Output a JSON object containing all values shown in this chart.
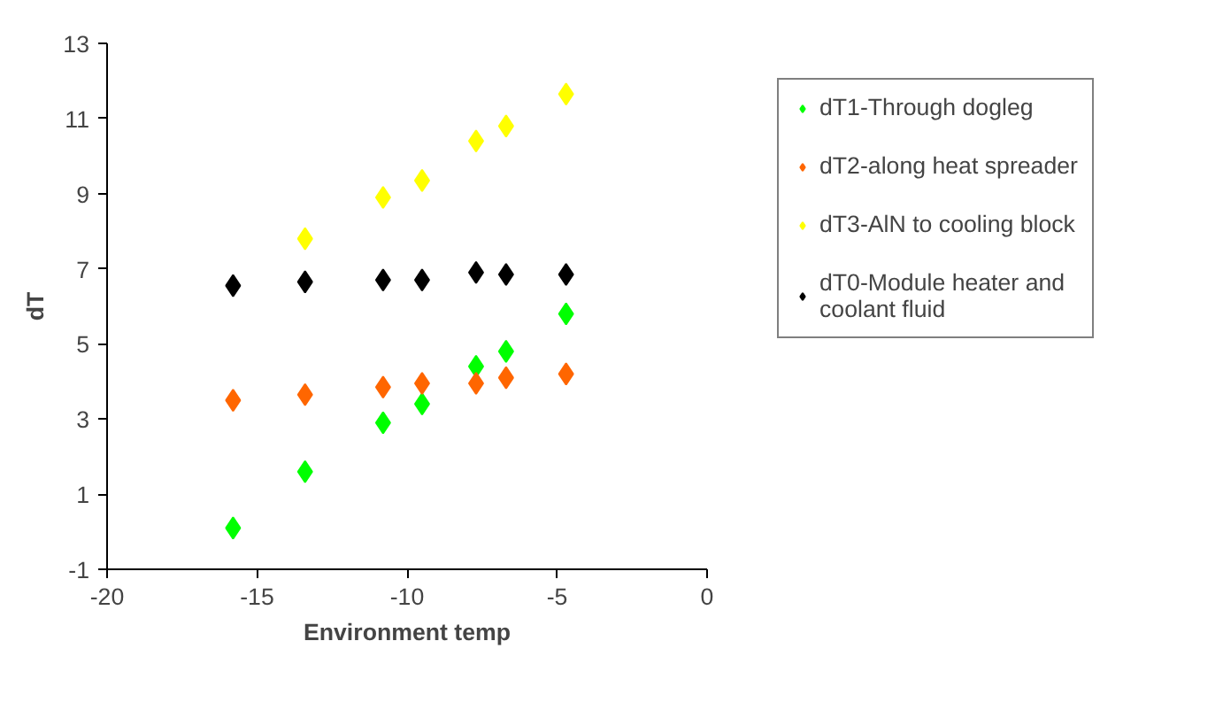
{
  "chart_data": {
    "type": "scatter",
    "xlabel": "Environment temp",
    "ylabel": "dT",
    "x": [
      -15.8,
      -13.4,
      -10.8,
      -9.5,
      -7.7,
      -6.7,
      -4.7
    ],
    "series": [
      {
        "name": "dT1-Through dogleg",
        "color": "#00ff00",
        "values": [
          0.1,
          1.6,
          2.9,
          3.4,
          4.4,
          4.8,
          5.8
        ]
      },
      {
        "name": "dT2-along heat spreader",
        "color": "#ff6600",
        "values": [
          3.5,
          3.65,
          3.85,
          3.95,
          3.95,
          4.1,
          4.2
        ]
      },
      {
        "name": "dT3-AlN to cooling block",
        "color": "#ffff00",
        "values": [
          null,
          7.8,
          8.9,
          9.35,
          10.4,
          10.8,
          11.65
        ]
      },
      {
        "name": "dT0-Module heater and coolant fluid",
        "color": "#000000",
        "values": [
          6.55,
          6.65,
          6.7,
          6.7,
          6.9,
          6.85,
          6.85
        ]
      }
    ],
    "xlim": [
      -20,
      0
    ],
    "xticks": [
      -20,
      -15,
      -10,
      -5,
      0
    ],
    "ylim": [
      -1,
      13
    ],
    "yticks": [
      -1,
      1,
      3,
      5,
      7,
      9,
      11,
      13
    ],
    "grid": false,
    "legend": "right",
    "marker": "diamond"
  }
}
